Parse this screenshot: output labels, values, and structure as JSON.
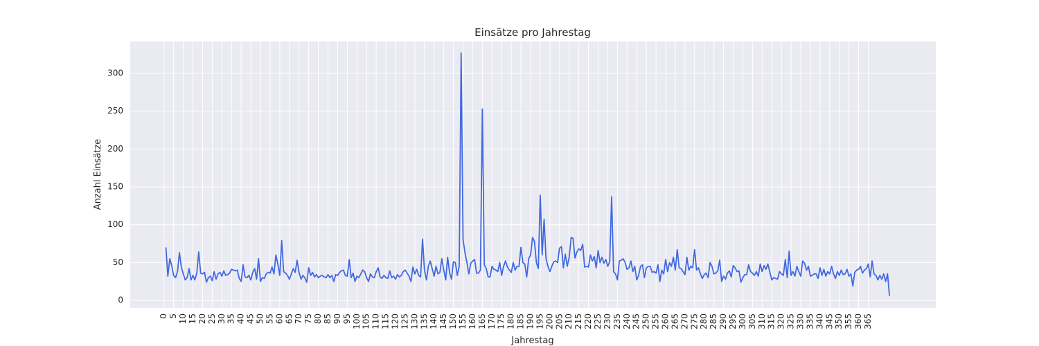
{
  "chart_data": {
    "type": "line",
    "title": "Einsätze pro Jahrestag",
    "xlabel": "Jahrestag",
    "ylabel": "Anzahl Einsätze",
    "xlim": [
      -17.5,
      400
    ],
    "ylim": [
      -10,
      342
    ],
    "xticks": [
      0,
      5,
      10,
      15,
      20,
      25,
      30,
      35,
      40,
      45,
      50,
      55,
      60,
      65,
      70,
      75,
      80,
      85,
      90,
      95,
      100,
      105,
      110,
      115,
      120,
      125,
      130,
      135,
      140,
      145,
      150,
      155,
      160,
      165,
      170,
      175,
      180,
      185,
      190,
      195,
      200,
      205,
      210,
      215,
      220,
      225,
      230,
      235,
      240,
      245,
      250,
      255,
      260,
      265,
      270,
      275,
      280,
      285,
      290,
      295,
      300,
      305,
      310,
      315,
      320,
      325,
      330,
      335,
      340,
      345,
      350,
      355,
      360,
      365
    ],
    "yticks": [
      0,
      50,
      100,
      150,
      200,
      250,
      300
    ],
    "grid": true,
    "line_color": "#4169e1",
    "background_color": "#eaeaf2",
    "series": [
      {
        "x_start": 1,
        "values": [
          70,
          32,
          55,
          46,
          33,
          30,
          38,
          63,
          44,
          35,
          27,
          30,
          42,
          27,
          33,
          27,
          36,
          64,
          36,
          35,
          37,
          24,
          30,
          32,
          26,
          38,
          28,
          35,
          37,
          32,
          39,
          33,
          34,
          36,
          41,
          40,
          39,
          40,
          29,
          25,
          47,
          31,
          30,
          33,
          27,
          37,
          42,
          28,
          55,
          25,
          30,
          29,
          35,
          37,
          36,
          44,
          35,
          60,
          48,
          33,
          79,
          38,
          36,
          33,
          28,
          35,
          42,
          37,
          53,
          37,
          28,
          33,
          30,
          24,
          43,
          33,
          37,
          31,
          34,
          30,
          32,
          33,
          31,
          30,
          34,
          30,
          33,
          25,
          34,
          33,
          37,
          39,
          40,
          33,
          32,
          54,
          30,
          36,
          25,
          32,
          30,
          35,
          40,
          38,
          30,
          25,
          35,
          31,
          30,
          38,
          43,
          31,
          29,
          33,
          30,
          29,
          39,
          30,
          32,
          28,
          34,
          31,
          33,
          38,
          40,
          36,
          32,
          25,
          44,
          35,
          41,
          33,
          31,
          81,
          40,
          27,
          45,
          52,
          42,
          32,
          45,
          35,
          37,
          55,
          40,
          27,
          57,
          37,
          28,
          51,
          50,
          33,
          45,
          327,
          80,
          63,
          50,
          35,
          49,
          52,
          54,
          36,
          36,
          40,
          253,
          47,
          42,
          31,
          31,
          45,
          41,
          40,
          38,
          50,
          33,
          45,
          52,
          44,
          40,
          37,
          50,
          40,
          45,
          45,
          70,
          50,
          48,
          31,
          55,
          60,
          83,
          78,
          50,
          42,
          139,
          60,
          107,
          55,
          45,
          38,
          45,
          51,
          52,
          50,
          69,
          71,
          43,
          61,
          45,
          57,
          83,
          82,
          56,
          64,
          68,
          66,
          74,
          44,
          45,
          44,
          60,
          52,
          58,
          43,
          66,
          50,
          57,
          49,
          54,
          45,
          51,
          137,
          38,
          35,
          27,
          52,
          53,
          55,
          50,
          41,
          43,
          52,
          38,
          45,
          27,
          33,
          45,
          47,
          30,
          43,
          45,
          45,
          37,
          38,
          36,
          47,
          25,
          40,
          35,
          54,
          38,
          50,
          45,
          57,
          40,
          67,
          43,
          42,
          38,
          34,
          57,
          40,
          45,
          43,
          67,
          40,
          43,
          35,
          29,
          34,
          36,
          30,
          50,
          45,
          35,
          36,
          39,
          53,
          25,
          32,
          28,
          36,
          39,
          31,
          46,
          43,
          38,
          39,
          24,
          30,
          34,
          34,
          47,
          38,
          36,
          33,
          38,
          32,
          48,
          38,
          46,
          41,
          48,
          37,
          27,
          30,
          29,
          28,
          38,
          35,
          33,
          54,
          30,
          65,
          33,
          38,
          32,
          45,
          38,
          32,
          52,
          49,
          40,
          45,
          32,
          33,
          35,
          35,
          29,
          43,
          33,
          41,
          32,
          38,
          35,
          45,
          35,
          29,
          38,
          33,
          40,
          34,
          35,
          41,
          32,
          35,
          19,
          37,
          40,
          41,
          45,
          36,
          40,
          42,
          48,
          31,
          52,
          35,
          33,
          27,
          33,
          28,
          35,
          25,
          35,
          6
        ]
      }
    ]
  }
}
